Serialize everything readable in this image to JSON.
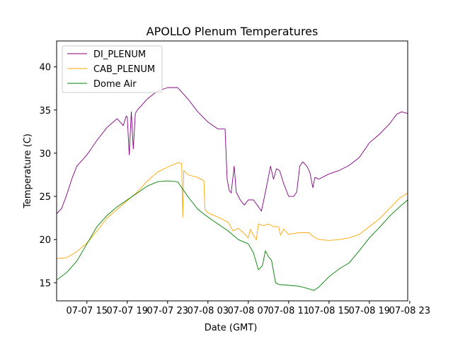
{
  "chart_data": {
    "type": "line",
    "title": "APOLLO Plenum Temperatures",
    "xlabel": "Date (GMT)",
    "ylabel": "Temperature (C)",
    "xlim": [
      0,
      34.8
    ],
    "ylim": [
      12.9,
      43.0
    ],
    "x_unit": "hours since 07-07 12:00 GMT",
    "xticks": [
      {
        "x": 3,
        "label": "07-07 15"
      },
      {
        "x": 7,
        "label": "07-07 19"
      },
      {
        "x": 11,
        "label": "07-07 23"
      },
      {
        "x": 15,
        "label": "07-08 03"
      },
      {
        "x": 19,
        "label": "07-08 07"
      },
      {
        "x": 23,
        "label": "07-08 11"
      },
      {
        "x": 27,
        "label": "07-08 15"
      },
      {
        "x": 31,
        "label": "07-08 19"
      },
      {
        "x": 35,
        "label": "07-08 23"
      }
    ],
    "yticks": [
      15,
      20,
      25,
      30,
      35,
      40
    ],
    "legend_position": "top-left",
    "series": [
      {
        "name": "DI_PLENUM",
        "color": "#800080",
        "points": [
          [
            0,
            23.0
          ],
          [
            0.5,
            23.6
          ],
          [
            1,
            25.2
          ],
          [
            1.5,
            27.0
          ],
          [
            2,
            28.5
          ],
          [
            3,
            29.8
          ],
          [
            4,
            31.5
          ],
          [
            5,
            33.0
          ],
          [
            6,
            34.0
          ],
          [
            6.6,
            33.2
          ],
          [
            6.9,
            34.3
          ],
          [
            7,
            34.2
          ],
          [
            7.2,
            29.8
          ],
          [
            7.4,
            34.8
          ],
          [
            7.6,
            30.5
          ],
          [
            7.8,
            34.6
          ],
          [
            8,
            35.0
          ],
          [
            9,
            36.3
          ],
          [
            10,
            37.2
          ],
          [
            11,
            37.6
          ],
          [
            12,
            37.6
          ],
          [
            13,
            36.3
          ],
          [
            14,
            34.8
          ],
          [
            15,
            33.6
          ],
          [
            16,
            32.8
          ],
          [
            16.7,
            32.8
          ],
          [
            16.9,
            27.0
          ],
          [
            17.1,
            25.7
          ],
          [
            17.3,
            25.4
          ],
          [
            17.6,
            28.5
          ],
          [
            17.8,
            25.5
          ],
          [
            18.2,
            24.6
          ],
          [
            18.6,
            24.0
          ],
          [
            19,
            24.6
          ],
          [
            19.5,
            24.6
          ],
          [
            20,
            23.8
          ],
          [
            20.3,
            23.3
          ],
          [
            20.7,
            25.5
          ],
          [
            21.2,
            28.5
          ],
          [
            21.5,
            27.0
          ],
          [
            21.8,
            28.2
          ],
          [
            22.1,
            28.0
          ],
          [
            22.5,
            26.5
          ],
          [
            23,
            25.0
          ],
          [
            23.5,
            25.0
          ],
          [
            23.8,
            25.5
          ],
          [
            24.1,
            28.5
          ],
          [
            24.4,
            29.0
          ],
          [
            24.8,
            28.5
          ],
          [
            25.1,
            27.8
          ],
          [
            25.4,
            26.0
          ],
          [
            25.6,
            27.2
          ],
          [
            26,
            27.0
          ],
          [
            27,
            27.6
          ],
          [
            28,
            28.0
          ],
          [
            29,
            28.6
          ],
          [
            30,
            29.5
          ],
          [
            31,
            31.2
          ],
          [
            32,
            32.2
          ],
          [
            33,
            33.4
          ],
          [
            33.7,
            34.5
          ],
          [
            34.2,
            34.8
          ],
          [
            34.8,
            34.6
          ]
        ]
      },
      {
        "name": "CAB_PLENUM",
        "color": "#FFA500",
        "points": [
          [
            0,
            17.8
          ],
          [
            1,
            17.9
          ],
          [
            2,
            18.6
          ],
          [
            3,
            19.6
          ],
          [
            4,
            21.0
          ],
          [
            5,
            22.5
          ],
          [
            6,
            23.5
          ],
          [
            7,
            24.5
          ],
          [
            8,
            25.5
          ],
          [
            9,
            26.8
          ],
          [
            10,
            27.8
          ],
          [
            11,
            28.4
          ],
          [
            12,
            28.9
          ],
          [
            12.4,
            28.8
          ],
          [
            12.5,
            22.6
          ],
          [
            12.6,
            28.0
          ],
          [
            13,
            27.5
          ],
          [
            14,
            27.2
          ],
          [
            14.6,
            26.8
          ],
          [
            14.7,
            23.5
          ],
          [
            15,
            23.1
          ],
          [
            16,
            22.6
          ],
          [
            17,
            22.0
          ],
          [
            17.5,
            21.0
          ],
          [
            18,
            21.3
          ],
          [
            18.5,
            20.8
          ],
          [
            19,
            20.2
          ],
          [
            19.2,
            21.2
          ],
          [
            19.5,
            20.5
          ],
          [
            19.8,
            20.0
          ],
          [
            20,
            21.8
          ],
          [
            20.5,
            21.6
          ],
          [
            21,
            21.8
          ],
          [
            21.5,
            21.5
          ],
          [
            22,
            21.5
          ],
          [
            22.2,
            20.5
          ],
          [
            22.5,
            21.2
          ],
          [
            23,
            20.6
          ],
          [
            24,
            20.8
          ],
          [
            25,
            20.8
          ],
          [
            25.5,
            20.3
          ],
          [
            26,
            20.0
          ],
          [
            27,
            19.9
          ],
          [
            28,
            20.0
          ],
          [
            29,
            20.2
          ],
          [
            30,
            20.6
          ],
          [
            31,
            21.5
          ],
          [
            32,
            22.4
          ],
          [
            33,
            23.6
          ],
          [
            34,
            24.8
          ],
          [
            34.8,
            25.4
          ]
        ]
      },
      {
        "name": "Dome Air",
        "color": "#008000",
        "points": [
          [
            0,
            15.3
          ],
          [
            1,
            16.2
          ],
          [
            2,
            17.5
          ],
          [
            3,
            19.5
          ],
          [
            4,
            21.5
          ],
          [
            5,
            22.8
          ],
          [
            6,
            23.8
          ],
          [
            7,
            24.6
          ],
          [
            8,
            25.4
          ],
          [
            9,
            26.2
          ],
          [
            10,
            26.7
          ],
          [
            11,
            26.8
          ],
          [
            12,
            26.7
          ],
          [
            13,
            25.0
          ],
          [
            14,
            23.5
          ],
          [
            15,
            22.6
          ],
          [
            16,
            21.8
          ],
          [
            17,
            21.0
          ],
          [
            18,
            20.0
          ],
          [
            19,
            19.5
          ],
          [
            19.5,
            18.5
          ],
          [
            20,
            16.5
          ],
          [
            20.4,
            17.0
          ],
          [
            20.7,
            18.7
          ],
          [
            21,
            18.0
          ],
          [
            21.3,
            17.6
          ],
          [
            21.7,
            15.0
          ],
          [
            22,
            14.8
          ],
          [
            23,
            14.7
          ],
          [
            24,
            14.6
          ],
          [
            25,
            14.3
          ],
          [
            25.5,
            14.1
          ],
          [
            26,
            14.5
          ],
          [
            27,
            15.7
          ],
          [
            28,
            16.6
          ],
          [
            29,
            17.3
          ],
          [
            30,
            18.7
          ],
          [
            31,
            20.2
          ],
          [
            32,
            21.4
          ],
          [
            33,
            22.7
          ],
          [
            34,
            23.8
          ],
          [
            34.8,
            24.6
          ]
        ]
      }
    ]
  }
}
